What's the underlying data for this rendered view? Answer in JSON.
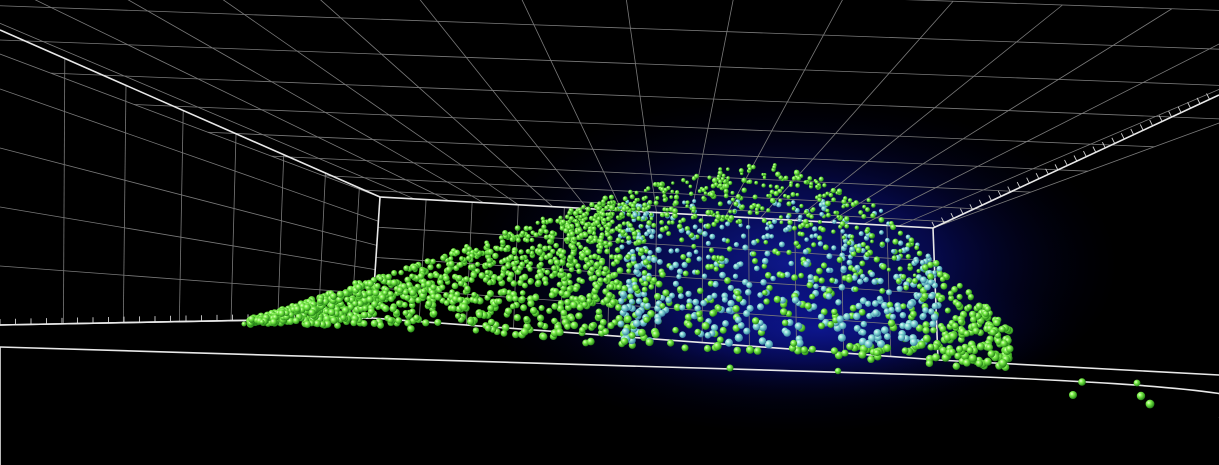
{
  "scene": {
    "background_color": "#000000",
    "grid_line_color": "#8a8a8a",
    "frame_line_color": "#e6e6e6",
    "particle_color_primary": "#5ee03a",
    "particle_color_highlight": "#b4ff7a",
    "particle_color_cool": "#7fc7ff",
    "glow_color": "#1a22ff"
  }
}
